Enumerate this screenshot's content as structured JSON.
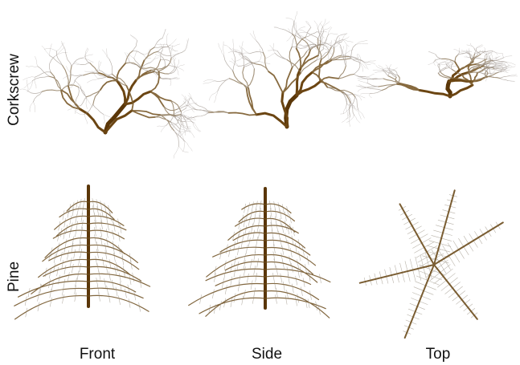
{
  "rows": [
    {
      "label": "Corkscrew"
    },
    {
      "label": "Pine"
    }
  ],
  "columns": [
    "Front",
    "Side",
    "Top"
  ]
}
